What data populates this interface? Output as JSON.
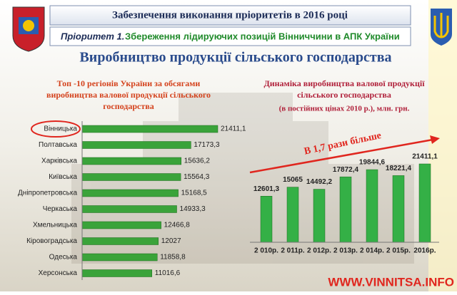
{
  "header": {
    "title": "Забезпечення виконання пріоритетів в 2016 році",
    "priority_label": "Пріоритет 1.",
    "priority_text": "Збереження лідируючих позицій Вінниччини в АПК України"
  },
  "section_title": "Виробництво продукції сільського господарства",
  "chart_data": [
    {
      "type": "bar",
      "orientation": "horizontal",
      "title": [
        "Топ -10 регіонів України за обсягами",
        "виробництва валової продукції сільського",
        "господарства"
      ],
      "categories": [
        "Вінницька",
        "Полтавська",
        "Харківська",
        "Київська",
        "Дніпропетровська",
        "Черкаська",
        "Хмельницька",
        "Кіровоградська",
        "Одеська",
        "Херсонська"
      ],
      "values": [
        21411.1,
        17173.3,
        15636.2,
        15564.3,
        15168.5,
        14933.3,
        12466.8,
        12027,
        11858.8,
        11016.6
      ],
      "value_labels": [
        "21411,1",
        "17173,3",
        "15636,2",
        "15564,3",
        "15168,5",
        "14933,3",
        "12466,8",
        "12027",
        "11858,8",
        "11016,6"
      ],
      "color": "#3aa33a"
    },
    {
      "type": "bar",
      "orientation": "vertical",
      "title": [
        "Динаміка виробництва валової продукції",
        "сільського господарства"
      ],
      "subtitle": "(в постійних цінах 2010 р.), млн. грн.",
      "categories": [
        "2 010р.",
        "2 011р.",
        "2 012р.",
        "2 013р.",
        "2 014р.",
        "2 015р.",
        "2016р."
      ],
      "values": [
        12601.3,
        15065,
        14492.2,
        17872.4,
        19844.6,
        18221.4,
        21411.1
      ],
      "value_labels": [
        "12601,3",
        "15065",
        "14492,2",
        "17872,4",
        "19844,6",
        "18221,4",
        "21411,1"
      ],
      "color": "#34b046",
      "annotation": "В 1,7 рази більше"
    }
  ],
  "watermark": "WWW.VINNITSA.INFO"
}
